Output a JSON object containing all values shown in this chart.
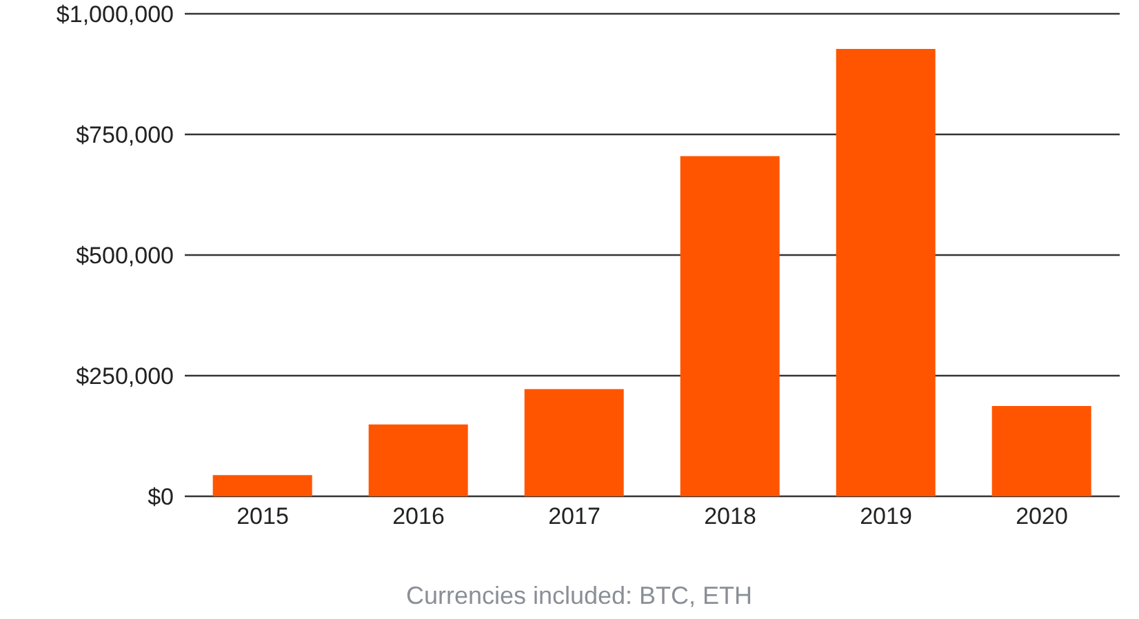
{
  "chart_data": {
    "type": "bar",
    "categories": [
      "2015",
      "2016",
      "2017",
      "2018",
      "2019",
      "2020"
    ],
    "values": [
      44000,
      149000,
      222000,
      705000,
      927000,
      187000
    ],
    "color": "#ff5500",
    "ylim": [
      0,
      1000000
    ],
    "yticks": [
      {
        "value": 0,
        "label": "$0"
      },
      {
        "value": 250000,
        "label": "$250,000"
      },
      {
        "value": 500000,
        "label": "$500,000"
      },
      {
        "value": 750000,
        "label": "$750,000"
      },
      {
        "value": 1000000,
        "label": "$1,000,000"
      }
    ],
    "grid": "y",
    "legend": false,
    "annotations": [
      "Currencies included: BTC, ETH"
    ]
  }
}
